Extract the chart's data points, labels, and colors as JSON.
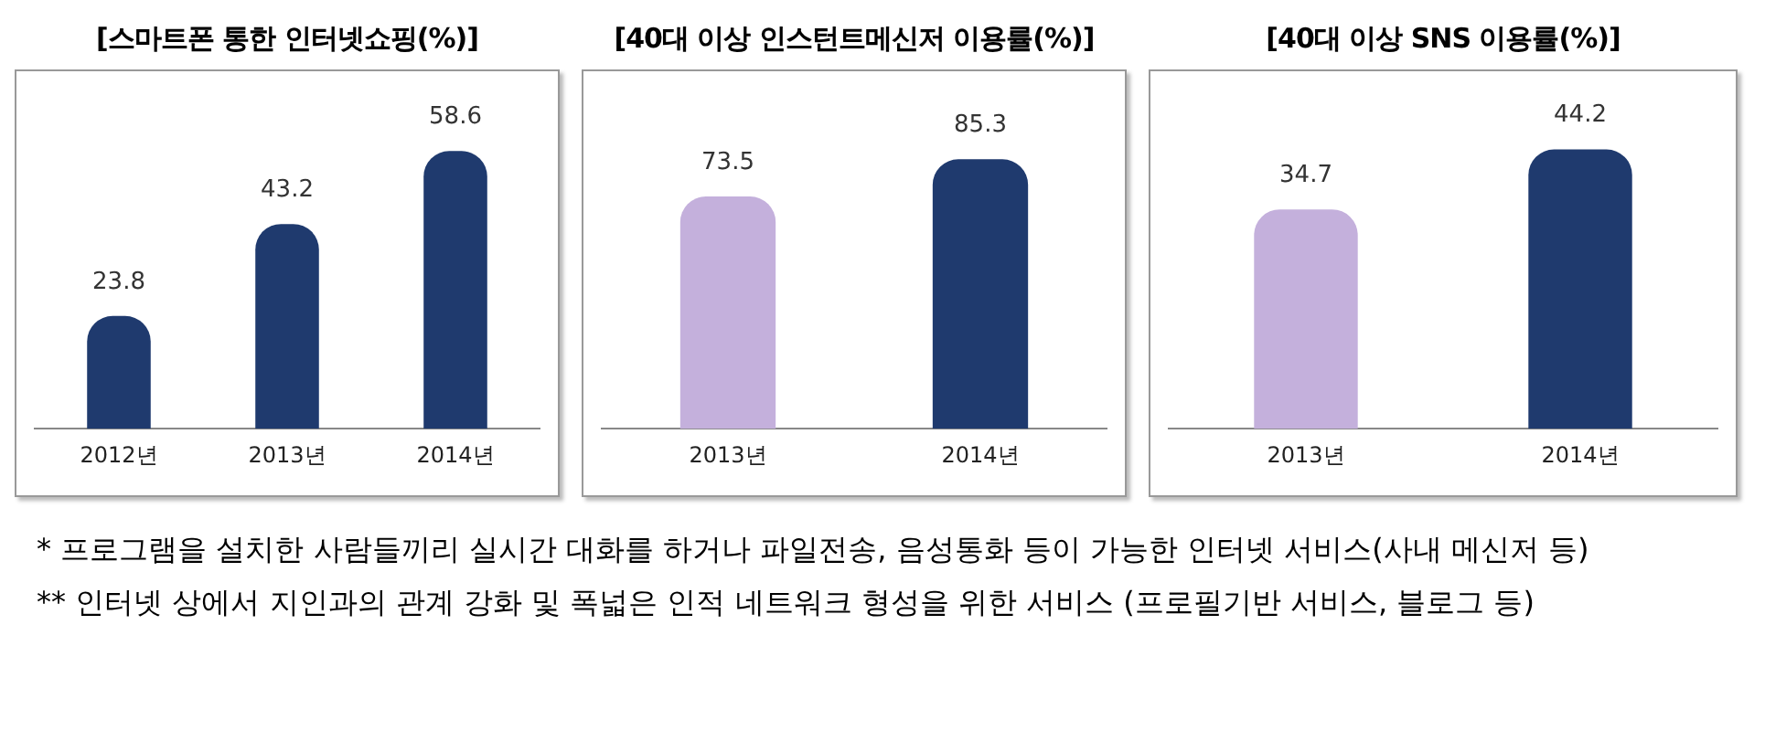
{
  "chart_data": [
    {
      "type": "bar",
      "title": "[스마트폰 통한 인터넷쇼핑(%)]",
      "categories": [
        "2012년",
        "2013년",
        "2014년"
      ],
      "values": [
        23.8,
        43.2,
        58.6
      ],
      "colors": [
        "#1f3a6e",
        "#1f3a6e",
        "#1f3a6e"
      ],
      "data_labels": true
    },
    {
      "type": "bar",
      "title": "[40대 이상 인스턴트메신저 이용률(%)]",
      "categories": [
        "2013년",
        "2014년"
      ],
      "values": [
        73.5,
        85.3
      ],
      "colors": [
        "#c4b0dc",
        "#1f3a6e"
      ],
      "data_labels": true,
      "annotations": [
        "* 프로그램을 설치한 사람들끼리 실시간 대화를 하거나 파일전송, 음성통화 등이 가능한 인터넷 서비스(사내 메신저 등)"
      ]
    },
    {
      "type": "bar",
      "title": "[40대 이상 SNS 이용률(%)]",
      "categories": [
        "2013년",
        "2014년"
      ],
      "values": [
        34.7,
        44.2
      ],
      "colors": [
        "#c4b0dc",
        "#1f3a6e"
      ],
      "data_labels": true,
      "annotations": [
        "** 인터넷 상에서 지인과의 관계 강화 및 폭넓은 인적 네트워크 형성을 위한 서비스 (프로필기반 서비스, 블로그 등)"
      ]
    }
  ]
}
